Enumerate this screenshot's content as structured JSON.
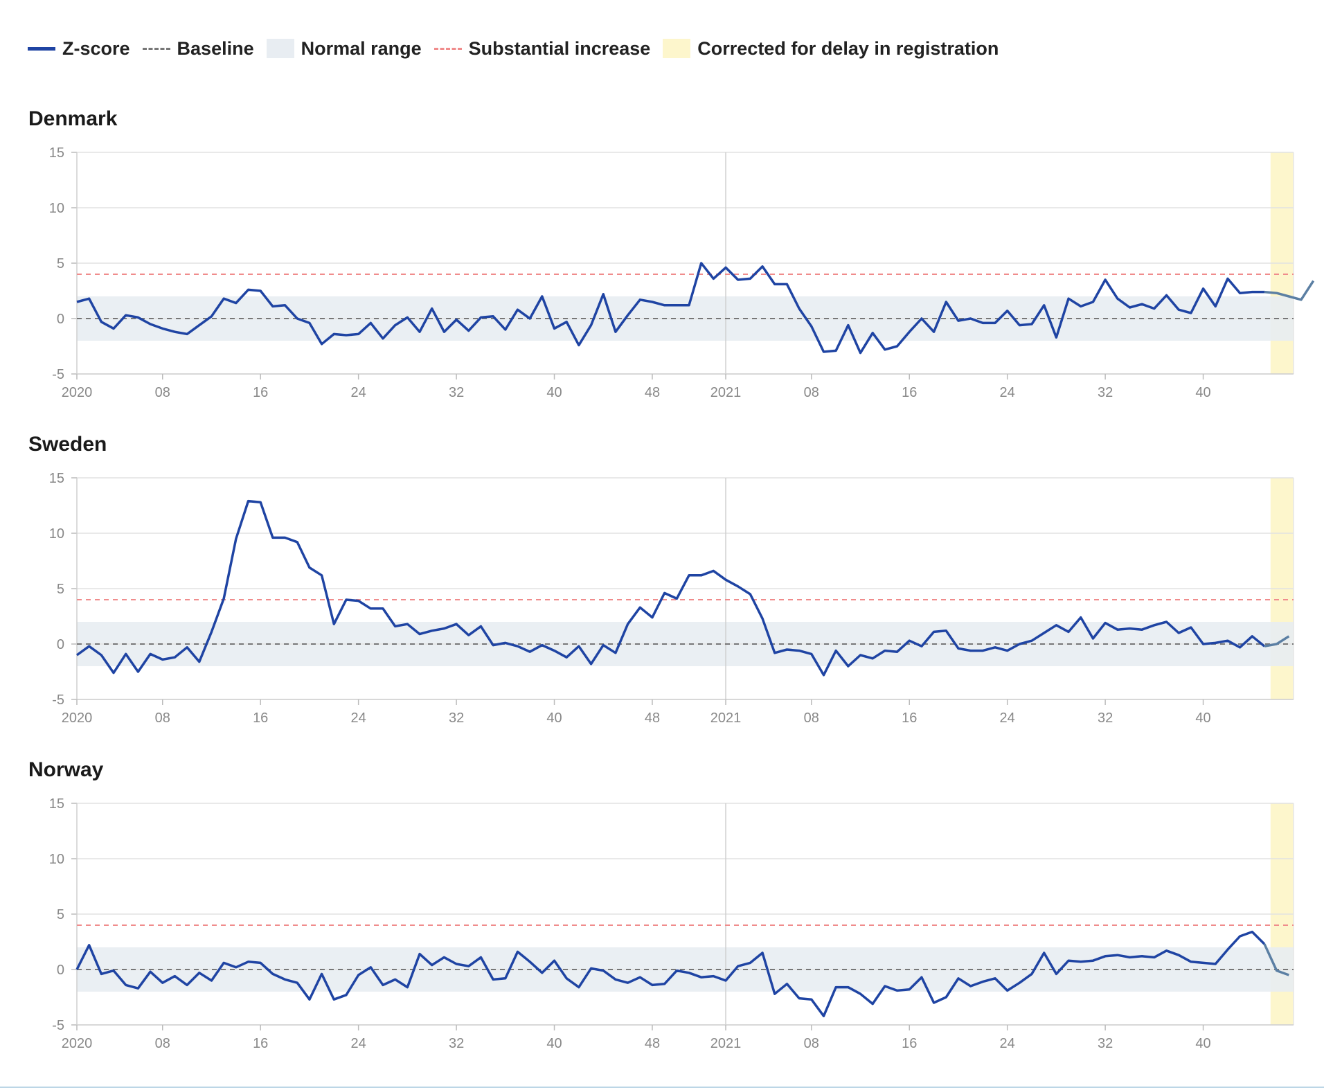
{
  "legend": {
    "zscore": "Z-score",
    "baseline": "Baseline",
    "normal_range": "Normal range",
    "substantial_increase": "Substantial increase",
    "corrected": "Corrected for delay in registration"
  },
  "colors": {
    "zscore_line": "#1f44a3",
    "corrected_line": "#5b7fa3",
    "baseline": "#777777",
    "normal_range": "#e8edf2",
    "substantial": "#f08c8c",
    "corrected_band": "#fdf6cc",
    "grid": "#e2e2e2",
    "year_line": "#cfcfcf"
  },
  "chart_data": [
    {
      "type": "line",
      "title": "Denmark",
      "x_unit": "ISO week",
      "x_start": "2020-W01",
      "ylim": [
        -5,
        15
      ],
      "y_ticks": [
        15,
        10,
        5,
        0,
        -5
      ],
      "x_ticks": [
        "2020",
        "08",
        "16",
        "24",
        "32",
        "40",
        "48",
        "2021",
        "08",
        "16",
        "24",
        "32",
        "40"
      ],
      "baseline": 0,
      "normal_range": [
        -2,
        2
      ],
      "substantial_increase": 4,
      "corrected_weeks": [
        "2021-W45",
        "2021-W46",
        "2021-W47",
        "2021-W48"
      ],
      "grid": true,
      "series": [
        {
          "name": "Z-score",
          "values": [
            1.5,
            1.8,
            -0.3,
            -0.9,
            0.3,
            0.1,
            -0.5,
            -0.9,
            -1.2,
            -1.4,
            -0.6,
            0.2,
            1.8,
            1.4,
            2.6,
            2.5,
            1.1,
            1.2,
            0.0,
            -0.4,
            -2.3,
            -1.4,
            -1.5,
            -1.4,
            -0.4,
            -1.8,
            -0.6,
            0.1,
            -1.2,
            0.9,
            -1.2,
            -0.1,
            -1.1,
            0.1,
            0.2,
            -1.0,
            0.8,
            0.0,
            2.0,
            -0.9,
            -0.3,
            -2.4,
            -0.6,
            2.2,
            -1.2,
            0.3,
            1.7,
            1.5,
            1.2,
            1.2,
            1.2,
            5.0,
            3.6,
            4.6,
            3.5,
            3.6,
            4.7,
            3.1,
            3.1,
            0.9,
            -0.7,
            -3.0,
            -2.9,
            -0.6,
            -3.1,
            -1.3,
            -2.8,
            -2.5,
            -1.2,
            0.0,
            -1.2,
            1.5,
            -0.2,
            0.0,
            -0.4,
            -0.4,
            0.7,
            -0.6,
            -0.5,
            1.2,
            -1.7,
            1.8,
            1.1,
            1.5,
            3.5,
            1.8,
            1.0,
            1.3,
            0.9,
            2.1,
            0.8,
            0.5,
            2.7,
            1.1,
            3.6,
            2.3,
            2.4,
            2.4,
            2.3,
            2.0,
            1.7,
            3.4
          ]
        }
      ]
    },
    {
      "type": "line",
      "title": "Sweden",
      "x_unit": "ISO week",
      "x_start": "2020-W01",
      "ylim": [
        -5,
        15
      ],
      "y_ticks": [
        15,
        10,
        5,
        0,
        -5
      ],
      "x_ticks": [
        "2020",
        "08",
        "16",
        "24",
        "32",
        "40",
        "48",
        "2021",
        "08",
        "16",
        "24",
        "32",
        "40"
      ],
      "baseline": 0,
      "normal_range": [
        -2,
        2
      ],
      "substantial_increase": 4,
      "corrected_weeks": [
        "2021-W45",
        "2021-W46",
        "2021-W47",
        "2021-W48"
      ],
      "grid": true,
      "series": [
        {
          "name": "Z-score",
          "values": [
            -1.0,
            -0.2,
            -1.0,
            -2.6,
            -0.9,
            -2.5,
            -0.9,
            -1.4,
            -1.2,
            -0.3,
            -1.6,
            1.1,
            4.1,
            9.5,
            12.9,
            12.8,
            9.6,
            9.6,
            9.2,
            6.9,
            6.2,
            1.8,
            4.0,
            3.9,
            3.2,
            3.2,
            1.6,
            1.8,
            0.9,
            1.2,
            1.4,
            1.8,
            0.8,
            1.6,
            -0.1,
            0.1,
            -0.2,
            -0.7,
            -0.1,
            -0.6,
            -1.2,
            -0.2,
            -1.8,
            -0.1,
            -0.8,
            1.8,
            3.3,
            2.4,
            4.6,
            4.1,
            6.2,
            6.2,
            6.6,
            5.8,
            5.2,
            4.5,
            2.3,
            -0.8,
            -0.5,
            -0.6,
            -0.9,
            -2.8,
            -0.6,
            -2.0,
            -1.0,
            -1.3,
            -0.6,
            -0.7,
            0.3,
            -0.2,
            1.1,
            1.2,
            -0.4,
            -0.6,
            -0.6,
            -0.3,
            -0.6,
            0.0,
            0.3,
            1.0,
            1.7,
            1.1,
            2.4,
            0.5,
            1.9,
            1.3,
            1.4,
            1.3,
            1.7,
            2.0,
            1.0,
            1.5,
            0.0,
            0.1,
            0.3,
            -0.3,
            0.7,
            -0.2,
            0.0,
            0.7
          ]
        }
      ]
    },
    {
      "type": "line",
      "title": "Norway",
      "x_unit": "ISO week",
      "x_start": "2020-W01",
      "ylim": [
        -5,
        15
      ],
      "y_ticks": [
        15,
        10,
        5,
        0,
        -5
      ],
      "x_ticks": [
        "2020",
        "08",
        "16",
        "24",
        "32",
        "40",
        "48",
        "2021",
        "08",
        "16",
        "24",
        "32",
        "40"
      ],
      "baseline": 0,
      "normal_range": [
        -2,
        2
      ],
      "substantial_increase": 4,
      "corrected_weeks": [
        "2021-W45",
        "2021-W46",
        "2021-W47",
        "2021-W48"
      ],
      "grid": true,
      "series": [
        {
          "name": "Z-score",
          "values": [
            0.0,
            2.2,
            -0.4,
            -0.1,
            -1.4,
            -1.7,
            -0.2,
            -1.2,
            -0.6,
            -1.4,
            -0.3,
            -1.0,
            0.6,
            0.2,
            0.7,
            0.6,
            -0.4,
            -0.9,
            -1.2,
            -2.7,
            -0.4,
            -2.7,
            -2.3,
            -0.5,
            0.2,
            -1.4,
            -0.9,
            -1.6,
            1.4,
            0.4,
            1.1,
            0.5,
            0.3,
            1.1,
            -0.9,
            -0.8,
            1.6,
            0.7,
            -0.3,
            0.8,
            -0.8,
            -1.6,
            0.1,
            -0.1,
            -0.9,
            -1.2,
            -0.7,
            -1.4,
            -1.3,
            -0.1,
            -0.3,
            -0.7,
            -0.6,
            -1.0,
            0.3,
            0.6,
            1.5,
            -2.2,
            -1.3,
            -2.6,
            -2.7,
            -4.2,
            -1.6,
            -1.6,
            -2.2,
            -3.1,
            -1.5,
            -1.9,
            -1.8,
            -0.7,
            -3.0,
            -2.5,
            -0.8,
            -1.5,
            -1.1,
            -0.8,
            -1.9,
            -1.2,
            -0.4,
            1.5,
            -0.4,
            0.8,
            0.7,
            0.8,
            1.2,
            1.3,
            1.1,
            1.2,
            1.1,
            1.7,
            1.3,
            0.7,
            0.6,
            0.5,
            1.8,
            3.0,
            3.4,
            2.3,
            -0.1,
            -0.5
          ]
        }
      ]
    }
  ]
}
